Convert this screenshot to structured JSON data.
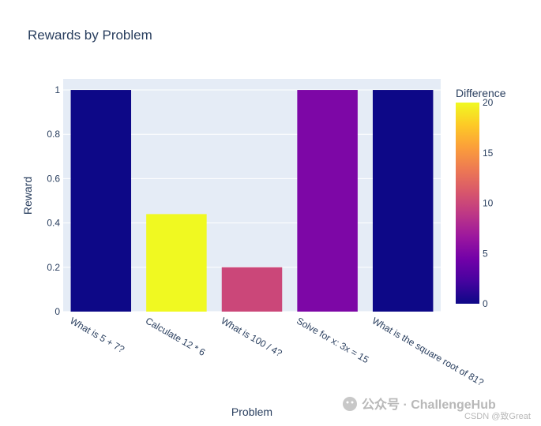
{
  "chart_data": {
    "type": "bar",
    "title": "Rewards by Problem",
    "xlabel": "Problem",
    "ylabel": "Reward",
    "categories": [
      "What is 5 + 7?",
      "Calculate 12 * 6",
      "What is 100 / 4?",
      "Solve for x: 3x = 15",
      "What is the square root of 81?"
    ],
    "values": [
      1,
      0.44,
      0.2,
      1,
      1
    ],
    "color_values": [
      0,
      20,
      10,
      5,
      0
    ],
    "ylim": [
      0,
      1.05
    ],
    "yticks": [
      0,
      0.2,
      0.4,
      0.6,
      0.8,
      1
    ],
    "ytick_labels": [
      "0",
      "0.2",
      "0.4",
      "0.6",
      "0.8",
      "1"
    ],
    "colorbar": {
      "title": "Difference",
      "range": [
        0,
        20
      ],
      "ticks": [
        0,
        5,
        10,
        15,
        20
      ],
      "tick_labels": [
        "0",
        "5",
        "10",
        "15",
        "20"
      ],
      "colorscale": [
        "#0d0887",
        "#46039f",
        "#7201a8",
        "#9c179e",
        "#bd3786",
        "#d8576b",
        "#ed7953",
        "#fb9f3a",
        "#fdca26",
        "#f0f921"
      ]
    },
    "grid": true,
    "plot_background": "#e5ecf6"
  },
  "watermark": {
    "text": "公众号 · ChallengeHub",
    "subtext": "CSDN @致Great"
  }
}
